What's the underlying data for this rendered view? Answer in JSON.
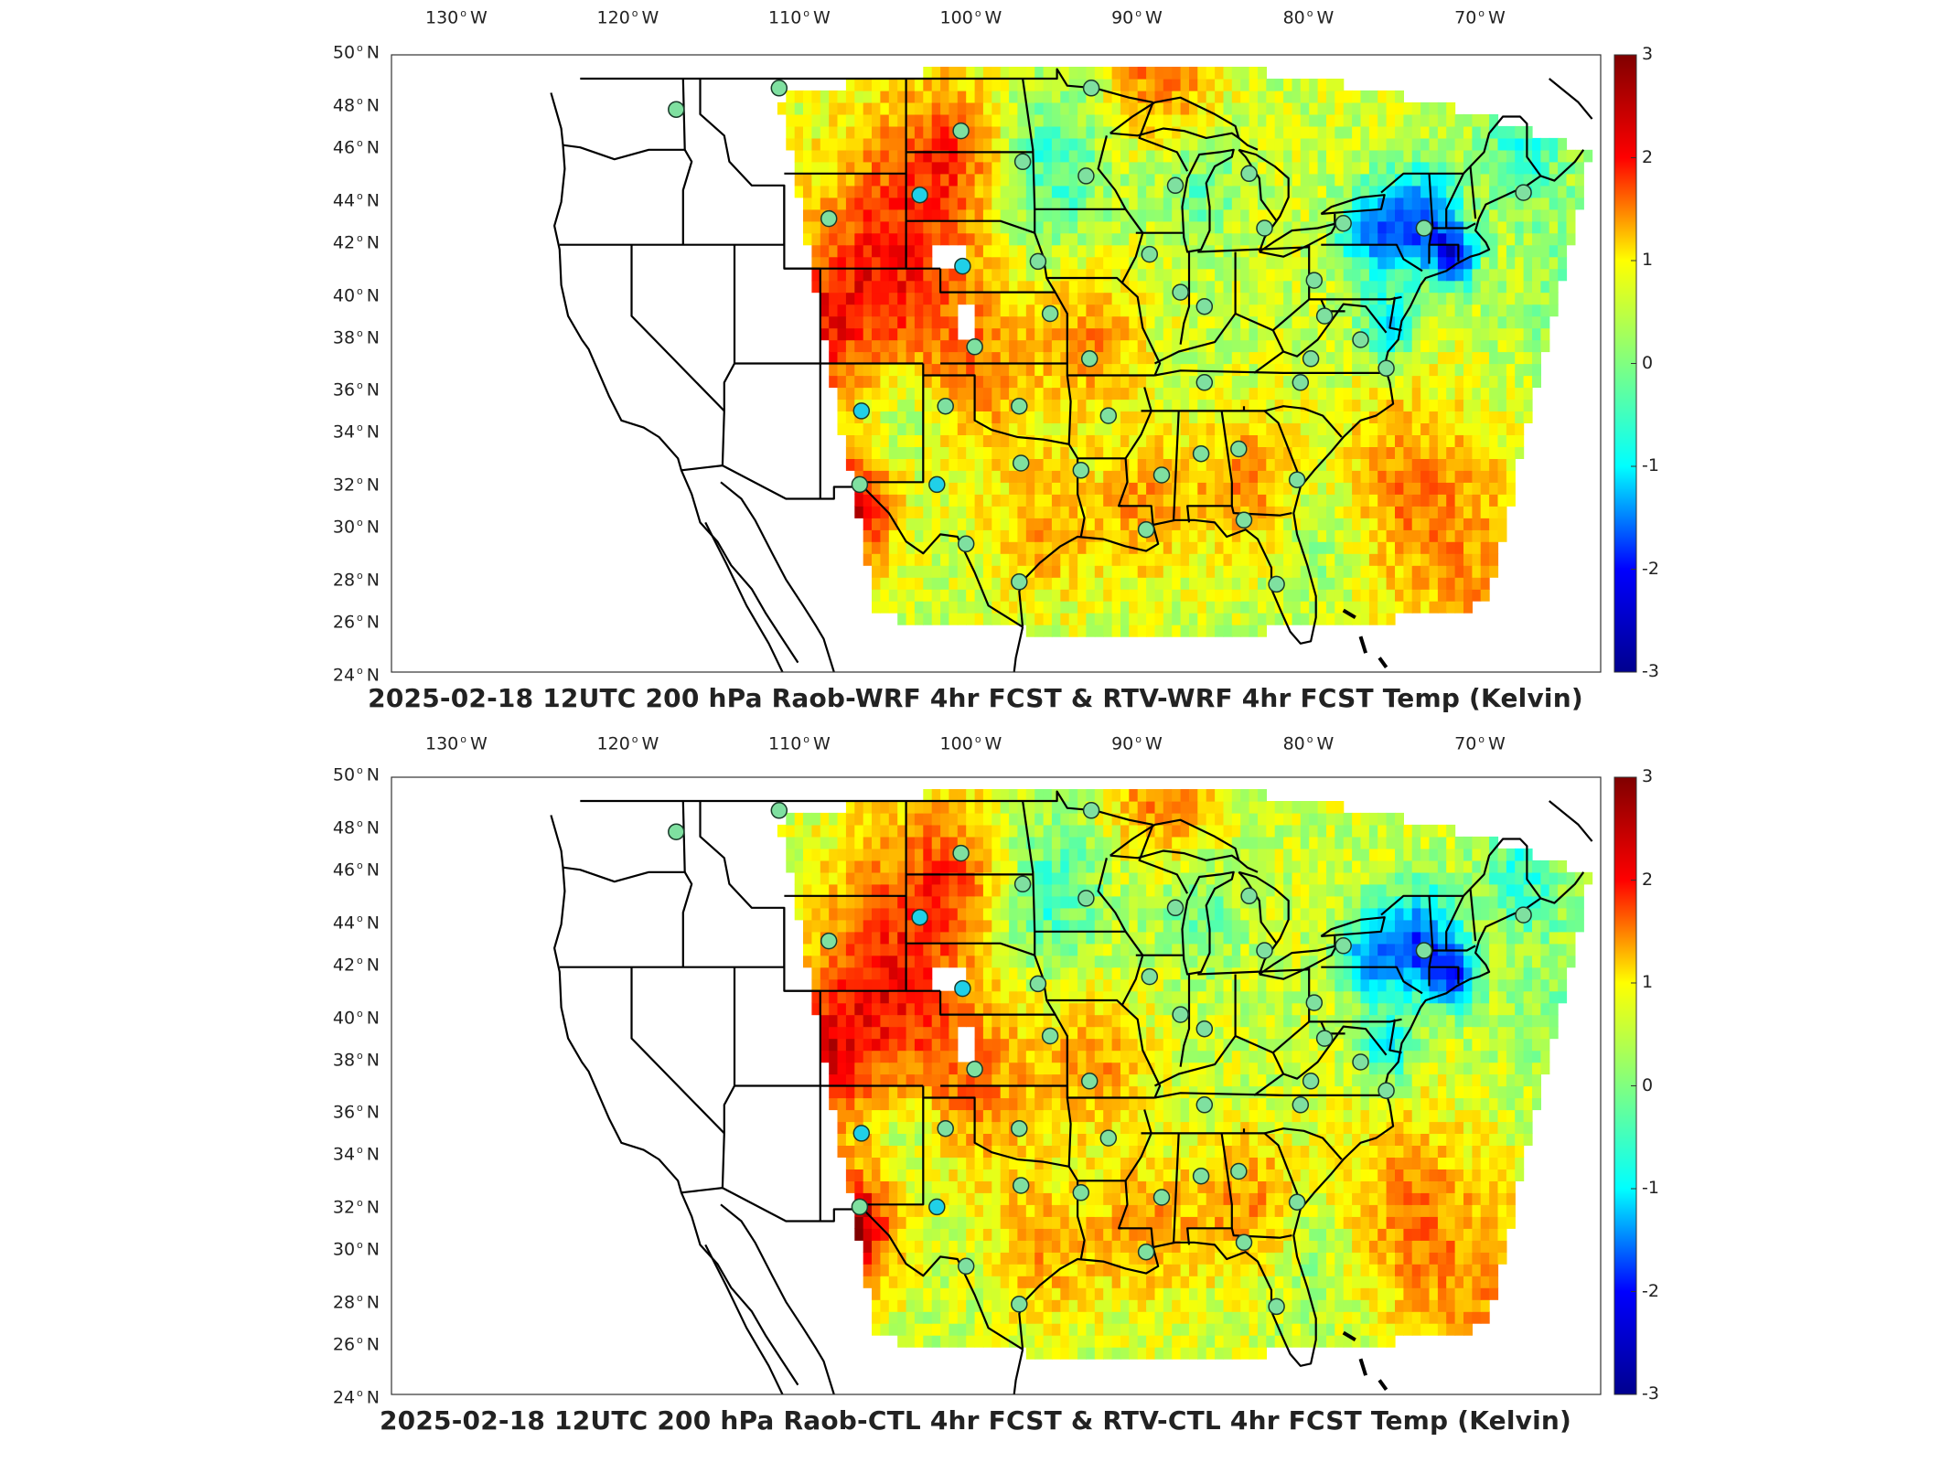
{
  "panels": [
    {
      "id": "top",
      "title": "2025-02-18 12UTC 200 hPa Raob-WRF 4hr FCST & RTV-WRF 4hr FCST Temp (Kelvin)"
    },
    {
      "id": "bottom",
      "title": "2025-02-18 12UTC 200 hPa Raob-CTL 4hr FCST & RTV-CTL 4hr FCST Temp (Kelvin)"
    }
  ],
  "lon_ticks": [
    {
      "value": "130",
      "hemi": "W"
    },
    {
      "value": "120",
      "hemi": "W"
    },
    {
      "value": "110",
      "hemi": "W"
    },
    {
      "value": "100",
      "hemi": "W"
    },
    {
      "value": "90",
      "hemi": "W"
    },
    {
      "value": "80",
      "hemi": "W"
    },
    {
      "value": "70",
      "hemi": "W"
    }
  ],
  "lat_ticks": [
    {
      "value": "50",
      "hemi": "N"
    },
    {
      "value": "48",
      "hemi": "N"
    },
    {
      "value": "46",
      "hemi": "N"
    },
    {
      "value": "44",
      "hemi": "N"
    },
    {
      "value": "42",
      "hemi": "N"
    },
    {
      "value": "40",
      "hemi": "N"
    },
    {
      "value": "38",
      "hemi": "N"
    },
    {
      "value": "36",
      "hemi": "N"
    },
    {
      "value": "34",
      "hemi": "N"
    },
    {
      "value": "32",
      "hemi": "N"
    },
    {
      "value": "30",
      "hemi": "N"
    },
    {
      "value": "28",
      "hemi": "N"
    },
    {
      "value": "26",
      "hemi": "N"
    },
    {
      "value": "24",
      "hemi": "N"
    }
  ],
  "colorbar": {
    "ticks": [
      "3",
      "2",
      "1",
      "0",
      "-1",
      "-2",
      "-3"
    ],
    "range": [
      -3,
      3
    ],
    "colormap": "jet",
    "colors": [
      "#00008f",
      "#0000ff",
      "#00ffff",
      "#80ff80",
      "#ffff00",
      "#ff0000",
      "#800000"
    ]
  },
  "colors": {
    "station_default": "#7fe0a0",
    "station_cold": "#20d0e8",
    "field_warm": "#ff8c1a",
    "field_neutral": "#c8f060",
    "field_cold": "#1a6cff",
    "border": "#000000"
  }
}
